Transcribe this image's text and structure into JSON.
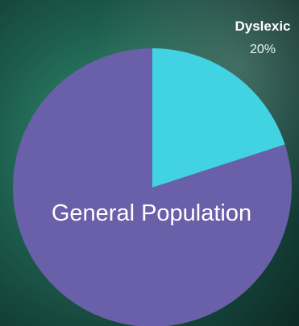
{
  "background": {
    "colors": [
      "#2f8f73",
      "#1d5c4c",
      "#133f36",
      "#0d2a24"
    ]
  },
  "chart_data": {
    "type": "pie",
    "title": "",
    "slices": [
      {
        "label": "Dyslexic",
        "value": 20,
        "value_label": "20%",
        "color": "#42d3e3"
      },
      {
        "label": "General Population",
        "value": 80,
        "value_label": "",
        "color": "#6a5fa9"
      }
    ],
    "start_angle_deg": 0,
    "direction": "clockwise",
    "legend": "none"
  }
}
